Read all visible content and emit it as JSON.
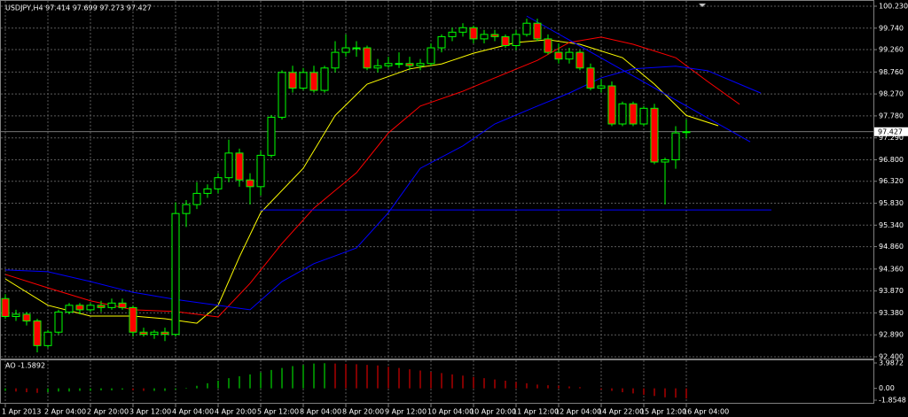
{
  "chart_data": {
    "type": "candlestick",
    "title": "USDJPY,H4  97.414 97.699 97.273 97.427",
    "up_color": "#00ff00",
    "down_color": "#ff0000",
    "grid": true,
    "candles": [
      [
        93.7,
        93.8,
        93.25,
        93.3
      ],
      [
        93.3,
        93.45,
        93.2,
        93.35
      ],
      [
        93.35,
        93.4,
        93.1,
        93.2
      ],
      [
        93.2,
        93.25,
        92.5,
        92.65
      ],
      [
        92.65,
        93.0,
        92.6,
        92.95
      ],
      [
        92.95,
        93.45,
        92.9,
        93.4
      ],
      [
        93.4,
        93.6,
        93.35,
        93.55
      ],
      [
        93.55,
        93.6,
        93.35,
        93.45
      ],
      [
        93.45,
        93.6,
        93.4,
        93.55
      ],
      [
        93.55,
        93.65,
        93.4,
        93.5
      ],
      [
        93.5,
        93.7,
        93.45,
        93.6
      ],
      [
        93.6,
        93.7,
        93.45,
        93.5
      ],
      [
        93.5,
        93.55,
        92.85,
        92.95
      ],
      [
        92.95,
        93.05,
        92.85,
        92.9
      ],
      [
        92.9,
        93.0,
        92.8,
        92.95
      ],
      [
        92.95,
        93.05,
        92.75,
        92.9
      ],
      [
        92.9,
        95.85,
        92.85,
        95.6
      ],
      [
        95.6,
        95.9,
        95.3,
        95.8
      ],
      [
        95.8,
        96.3,
        95.7,
        96.05
      ],
      [
        96.05,
        96.25,
        95.95,
        96.15
      ],
      [
        96.15,
        96.5,
        96.05,
        96.4
      ],
      [
        96.4,
        97.25,
        96.3,
        96.95
      ],
      [
        96.95,
        97.05,
        96.2,
        96.35
      ],
      [
        96.35,
        96.5,
        95.8,
        96.2
      ],
      [
        96.2,
        97.0,
        96.0,
        96.9
      ],
      [
        96.9,
        97.8,
        96.85,
        97.75
      ],
      [
        97.75,
        98.8,
        97.7,
        98.75
      ],
      [
        98.75,
        98.9,
        98.3,
        98.4
      ],
      [
        98.4,
        98.85,
        98.35,
        98.75
      ],
      [
        98.75,
        98.9,
        98.3,
        98.35
      ],
      [
        98.35,
        98.9,
        98.3,
        98.85
      ],
      [
        98.85,
        99.45,
        98.75,
        99.2
      ],
      [
        99.2,
        99.6,
        99.1,
        99.3
      ],
      [
        99.3,
        99.45,
        99.1,
        99.3
      ],
      [
        99.3,
        99.35,
        98.8,
        98.85
      ],
      [
        98.85,
        99.05,
        98.75,
        98.9
      ],
      [
        98.9,
        99.1,
        98.85,
        98.95
      ],
      [
        98.95,
        99.2,
        98.85,
        98.95
      ],
      [
        98.95,
        99.1,
        98.8,
        98.9
      ],
      [
        98.9,
        99.05,
        98.8,
        98.95
      ],
      [
        98.95,
        99.4,
        98.9,
        99.3
      ],
      [
        99.3,
        99.6,
        99.2,
        99.55
      ],
      [
        99.55,
        99.75,
        99.45,
        99.65
      ],
      [
        99.65,
        99.85,
        99.55,
        99.75
      ],
      [
        99.75,
        99.8,
        99.4,
        99.5
      ],
      [
        99.5,
        99.7,
        99.4,
        99.6
      ],
      [
        99.6,
        99.7,
        99.45,
        99.55
      ],
      [
        99.55,
        99.6,
        99.3,
        99.35
      ],
      [
        99.35,
        99.7,
        99.25,
        99.6
      ],
      [
        99.6,
        99.95,
        99.55,
        99.85
      ],
      [
        99.85,
        99.95,
        99.45,
        99.5
      ],
      [
        99.5,
        99.6,
        99.15,
        99.2
      ],
      [
        99.2,
        99.4,
        98.95,
        99.05
      ],
      [
        99.05,
        99.3,
        98.95,
        99.2
      ],
      [
        99.2,
        99.25,
        98.8,
        98.85
      ],
      [
        98.85,
        98.95,
        98.35,
        98.4
      ],
      [
        98.4,
        98.6,
        98.3,
        98.45
      ],
      [
        98.45,
        98.55,
        97.55,
        97.6
      ],
      [
        97.6,
        98.1,
        97.55,
        98.05
      ],
      [
        98.05,
        98.1,
        97.55,
        97.6
      ],
      [
        97.6,
        98.0,
        97.55,
        97.95
      ],
      [
        97.95,
        98.05,
        96.7,
        96.75
      ],
      [
        96.75,
        96.85,
        95.8,
        96.8
      ],
      [
        96.8,
        97.55,
        96.6,
        97.4
      ],
      [
        97.414,
        97.699,
        97.273,
        97.427
      ]
    ],
    "ylim": [
      92.4,
      100.23
    ],
    "yticks": [
      {
        "value": 100.23,
        "label": "100.230"
      },
      {
        "value": 99.74,
        "label": "99.740"
      },
      {
        "value": 99.26,
        "label": "99.260"
      },
      {
        "value": 98.76,
        "label": "98.760"
      },
      {
        "value": 98.27,
        "label": "98.270"
      },
      {
        "value": 97.78,
        "label": "97.780"
      },
      {
        "value": 97.29,
        "label": "97.290"
      },
      {
        "value": 96.8,
        "label": "96.800"
      },
      {
        "value": 96.32,
        "label": "96.320"
      },
      {
        "value": 95.83,
        "label": "95.830"
      },
      {
        "value": 95.34,
        "label": "95.340"
      },
      {
        "value": 94.86,
        "label": "94.860"
      },
      {
        "value": 94.36,
        "label": "94.360"
      },
      {
        "value": 93.87,
        "label": "93.870"
      },
      {
        "value": 93.38,
        "label": "93.380"
      },
      {
        "value": 92.89,
        "label": "92.890"
      },
      {
        "value": 92.4,
        "label": "92.400"
      }
    ],
    "xticks": [
      {
        "value": 0,
        "label": "1 Apr 2013"
      },
      {
        "value": 4,
        "label": "2 Apr 04:00"
      },
      {
        "value": 8,
        "label": "2 Apr 20:00"
      },
      {
        "value": 12,
        "label": "3 Apr 12:00"
      },
      {
        "value": 16,
        "label": "4 Apr 04:00"
      },
      {
        "value": 20,
        "label": "4 Apr 20:00"
      },
      {
        "value": 24,
        "label": "5 Apr 12:00"
      },
      {
        "value": 28,
        "label": "8 Apr 04:00"
      },
      {
        "value": 32,
        "label": "8 Apr 20:00"
      },
      {
        "value": 36,
        "label": "9 Apr 12:00"
      },
      {
        "value": 40,
        "label": "10 Apr 04:00"
      },
      {
        "value": 44,
        "label": "10 Apr 20:00"
      },
      {
        "value": 48,
        "label": "11 Apr 12:00"
      },
      {
        "value": 52,
        "label": "12 Apr 04:00"
      },
      {
        "value": 56,
        "label": "14 Apr 22:00"
      },
      {
        "value": 60,
        "label": "15 Apr 12:00"
      },
      {
        "value": 64,
        "label": "16 Apr 04:00"
      }
    ],
    "lines": [
      {
        "color": "#ffff00",
        "x": [
          0,
          4,
          8,
          12,
          15,
          18,
          20,
          22,
          24,
          28,
          31,
          34,
          38,
          41,
          44,
          48,
          51,
          54,
          58,
          61,
          64,
          67
        ],
        "values": [
          94.14,
          93.55,
          93.31,
          93.31,
          93.25,
          93.15,
          93.55,
          94.63,
          95.62,
          96.61,
          97.79,
          98.49,
          98.83,
          98.94,
          99.18,
          99.42,
          99.48,
          99.38,
          99.08,
          98.49,
          97.79,
          97.56
        ]
      },
      {
        "color": "#ff0000",
        "x": [
          0,
          4,
          8,
          12,
          16,
          20,
          23,
          26,
          29,
          33,
          36,
          39,
          43,
          46,
          50,
          53,
          56,
          59,
          63,
          66,
          69
        ],
        "values": [
          94.24,
          93.94,
          93.65,
          93.45,
          93.41,
          93.29,
          94.04,
          94.93,
          95.72,
          96.51,
          97.4,
          98.0,
          98.33,
          98.63,
          99.02,
          99.42,
          99.54,
          99.38,
          99.08,
          98.55,
          98.04
        ]
      },
      {
        "color": "#0000ff",
        "x": [
          0,
          4,
          8,
          12,
          16,
          20,
          23,
          26,
          29,
          33,
          36,
          39,
          43,
          46,
          50,
          53,
          56,
          59,
          63,
          66,
          69,
          71
        ],
        "values": [
          94.34,
          94.3,
          94.08,
          93.84,
          93.68,
          93.55,
          93.45,
          94.08,
          94.48,
          94.83,
          95.62,
          96.61,
          97.11,
          97.6,
          98.0,
          98.29,
          98.63,
          98.83,
          98.89,
          98.79,
          98.49,
          98.29
        ]
      },
      {
        "color": "#0000ff",
        "x": [
          49,
          70
        ],
        "values": [
          100.01,
          97.2
        ]
      },
      {
        "color": "#0000ff",
        "x": [
          24,
          72
        ],
        "values": [
          95.68,
          95.68
        ]
      }
    ],
    "indicator": {
      "type": "bar",
      "title": "AO -1.5892",
      "values": [
        -0.4,
        -0.5,
        -0.6,
        -0.7,
        -0.6,
        -0.5,
        -0.5,
        -0.4,
        -0.4,
        -0.3,
        -0.3,
        -0.2,
        -0.3,
        -0.4,
        -0.4,
        -0.4,
        -0.2,
        0.1,
        0.4,
        0.8,
        1.2,
        1.6,
        1.9,
        2.2,
        2.5,
        2.9,
        3.2,
        3.5,
        3.7,
        3.9,
        3.95,
        3.9,
        3.85,
        3.8,
        3.7,
        3.6,
        3.4,
        3.2,
        3.0,
        2.8,
        2.6,
        2.4,
        2.2,
        2.0,
        1.8,
        1.6,
        1.4,
        1.2,
        1.0,
        0.8,
        0.6,
        0.5,
        0.4,
        0.3,
        0.2,
        0.0,
        -0.2,
        -0.4,
        -0.6,
        -0.8,
        -1.0,
        -1.2,
        -1.4,
        -1.45,
        -1.5892
      ],
      "ylim": [
        -1.8548,
        3.9872
      ],
      "yticks": [
        3.9872,
        {
          "value": 0,
          "label": "0.00"
        },
        -1.8548
      ]
    }
  }
}
